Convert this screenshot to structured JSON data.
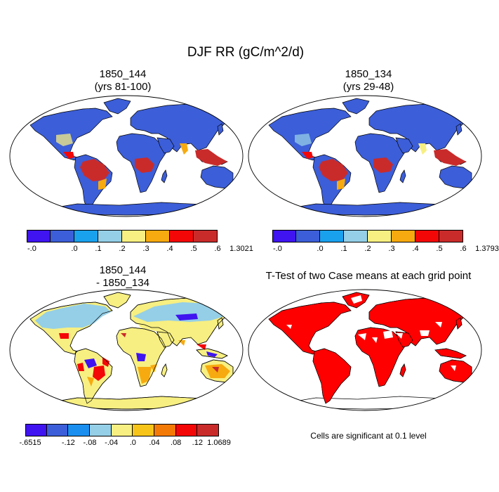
{
  "title": "DJF RR (gC/m^2/d)",
  "panels": [
    {
      "id": "p1",
      "title1": "1850_144",
      "title2": "(yrs 81-100)"
    },
    {
      "id": "p2",
      "title1": "1850_134",
      "title2": "(yrs 29-48)"
    },
    {
      "id": "p3",
      "title1": "1850_144",
      "title2": "- 1850_134"
    },
    {
      "id": "p4",
      "title": "T-Test of two Case means at each grid point"
    }
  ],
  "colorbars": {
    "cb1": {
      "colors": [
        "#3f14f0",
        "#3c5ed8",
        "#1aa1ee",
        "#95cfe7",
        "#f7ef81",
        "#f7aa0f",
        "#f40707",
        "#c92b2b"
      ],
      "labels": [
        "-.0",
        ".0",
        ".1",
        ".2",
        ".3",
        ".4",
        ".5",
        ".6",
        "1.3021"
      ]
    },
    "cb2": {
      "colors": [
        "#3f14f0",
        "#3c5ed8",
        "#1aa1ee",
        "#95cfe7",
        "#f7ef81",
        "#f7aa0f",
        "#f40707",
        "#c92b2b"
      ],
      "labels": [
        "-.0",
        ".0",
        ".1",
        ".2",
        ".3",
        ".4",
        ".5",
        ".6",
        "1.3793"
      ]
    },
    "cb3": {
      "colors": [
        "#3f14f0",
        "#3c5ed8",
        "#1a8ff0",
        "#95cfe7",
        "#f7ef81",
        "#f7c51a",
        "#f47a07",
        "#f40707",
        "#c92b2b"
      ],
      "labels": [
        "-.6515",
        "-.12",
        "-.08",
        "-.04",
        ".0",
        ".04",
        ".08",
        ".12",
        "1.0689"
      ]
    }
  },
  "significance_note": "Cells are significant at 0.1 level",
  "map_colors": {
    "base": "#3c5ed8",
    "high": "#c92b2b",
    "red": "#f40707",
    "yellow": "#f7ef81",
    "orange": "#f7aa0f",
    "lightblue": "#95cfe7",
    "deepblue": "#3f14f0",
    "sig": "#ff0000"
  }
}
